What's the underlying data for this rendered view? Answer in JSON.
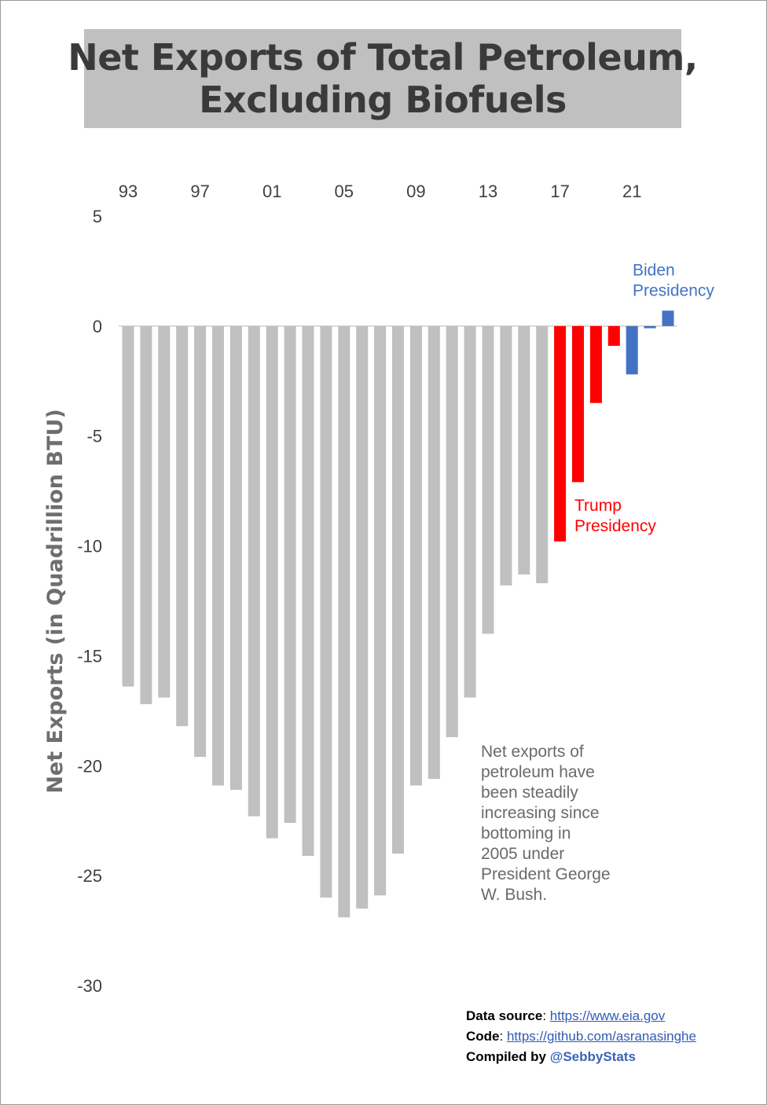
{
  "title": [
    "Net Exports of Total Petroleum,",
    "Excluding Biofuels"
  ],
  "footer": {
    "source_label": "Data source",
    "source_url": "https://www.eia.gov",
    "code_label": "Code",
    "code_url": "https://github.com/asranasinghe",
    "compiled_label": "Compiled by",
    "compiled_handle": "@SebbyStats"
  },
  "chart_data": {
    "type": "bar",
    "title": "Net Exports of Total Petroleum, Excluding Biofuels",
    "ylabel": "Net Exports (in Quadrillion BTU)",
    "xlabel": "",
    "ylim": [
      -30,
      5
    ],
    "yticks": [
      5,
      0,
      -5,
      -10,
      -15,
      -20,
      -25,
      -30
    ],
    "x_tick_labels": [
      "93",
      "97",
      "01",
      "05",
      "09",
      "13",
      "17",
      "21"
    ],
    "x_tick_years": [
      1993,
      1997,
      2001,
      2005,
      2009,
      2013,
      2017,
      2021
    ],
    "x_axis_position": "top",
    "grid": false,
    "colors": {
      "default": "#c0c0c0",
      "trump": "#ff0000",
      "biden": "#4472c4"
    },
    "categories": [
      1993,
      1994,
      1995,
      1996,
      1997,
      1998,
      1999,
      2000,
      2001,
      2002,
      2003,
      2004,
      2005,
      2006,
      2007,
      2008,
      2009,
      2010,
      2011,
      2012,
      2013,
      2014,
      2015,
      2016,
      2017,
      2018,
      2019,
      2020,
      2021,
      2022,
      2023
    ],
    "values": [
      -16.4,
      -17.2,
      -16.9,
      -18.2,
      -19.6,
      -20.9,
      -21.1,
      -22.3,
      -23.3,
      -22.6,
      -24.1,
      -26.0,
      -26.9,
      -26.5,
      -25.9,
      -24.0,
      -20.9,
      -20.6,
      -18.7,
      -16.9,
      -14.0,
      -11.8,
      -11.3,
      -11.7,
      -9.8,
      -7.1,
      -3.5,
      -0.9,
      -2.2,
      -0.1,
      0.7
    ],
    "groups": [
      "default",
      "default",
      "default",
      "default",
      "default",
      "default",
      "default",
      "default",
      "default",
      "default",
      "default",
      "default",
      "default",
      "default",
      "default",
      "default",
      "default",
      "default",
      "default",
      "default",
      "default",
      "default",
      "default",
      "default",
      "trump",
      "trump",
      "trump",
      "trump",
      "biden",
      "biden",
      "biden"
    ],
    "annotations": [
      {
        "text": [
          "Biden",
          "Presidency"
        ],
        "color": "#4472c4",
        "year": 2021,
        "value": 2.3
      },
      {
        "text": [
          "Trump",
          "Presidency"
        ],
        "color": "#ff0000",
        "year": 2018,
        "value": -8.4
      },
      {
        "text": [
          "Net exports of",
          "petroleum have",
          "been steadily",
          "increasing since",
          "bottoming in",
          "2005 under",
          "President George",
          "W. Bush."
        ],
        "color": "#6a6a6a",
        "year": 2013,
        "value": -19.6
      }
    ]
  }
}
